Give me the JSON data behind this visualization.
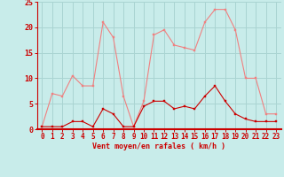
{
  "x": [
    0,
    1,
    2,
    3,
    4,
    5,
    6,
    7,
    8,
    9,
    10,
    11,
    12,
    13,
    14,
    15,
    16,
    17,
    18,
    19,
    20,
    21,
    22,
    23
  ],
  "rafales": [
    0.5,
    7,
    6.5,
    10.5,
    8.5,
    8.5,
    21,
    18,
    6.5,
    0.5,
    5.5,
    18.5,
    19.5,
    16.5,
    16,
    15.5,
    21,
    23.5,
    23.5,
    19.5,
    10,
    10,
    3,
    3
  ],
  "moyen": [
    0.5,
    0.5,
    0.5,
    1.5,
    1.5,
    0.5,
    4,
    3,
    0.5,
    0.5,
    4.5,
    5.5,
    5.5,
    4,
    4.5,
    4,
    6.5,
    8.5,
    5.5,
    3,
    2,
    1.5,
    1.5,
    1.5
  ],
  "rafales_color": "#f08080",
  "moyen_color": "#cc0000",
  "bg_color": "#c8ecea",
  "grid_color": "#aad4d2",
  "axis_color": "#cc0000",
  "xlabel": "Vent moyen/en rafales ( km/h )",
  "ylim": [
    0,
    25
  ],
  "xlim": [
    -0.5,
    23.5
  ],
  "yticks": [
    0,
    5,
    10,
    15,
    20,
    25
  ],
  "xticks": [
    0,
    1,
    2,
    3,
    4,
    5,
    6,
    7,
    8,
    9,
    10,
    11,
    12,
    13,
    14,
    15,
    16,
    17,
    18,
    19,
    20,
    21,
    22,
    23
  ],
  "xlabel_fontsize": 6.0,
  "tick_fontsize": 5.5,
  "ytick_fontsize": 6.0
}
